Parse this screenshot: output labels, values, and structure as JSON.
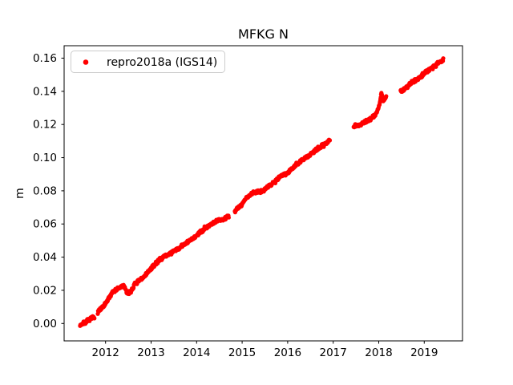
{
  "figure": {
    "background_color": "#ffffff",
    "frame_color": "#000000"
  },
  "chart_data": {
    "type": "scatter",
    "title": "MFKG N",
    "xlabel": "",
    "ylabel": "m",
    "grid": false,
    "axis": {
      "xlim": [
        2011.09,
        2019.84
      ],
      "ylim": [
        -0.0105,
        0.1675
      ],
      "xticks": [
        2012,
        2013,
        2014,
        2015,
        2016,
        2017,
        2018,
        2019
      ],
      "yticks": [
        0.0,
        0.02,
        0.04,
        0.06,
        0.08,
        0.1,
        0.12,
        0.14,
        0.16
      ],
      "ytick_decimals": 2
    },
    "legend": {
      "position": "upper left",
      "entries": [
        {
          "label": "repro2018a (IGS14)",
          "marker": "dot",
          "color": "#ff0000"
        }
      ]
    },
    "series": [
      {
        "name": "repro2018a (IGS14)",
        "color": "#ff0000",
        "marker": "dot",
        "marker_radius_px": 2.6,
        "sample_interval_years": 0.007,
        "noise_amplitude_m": 0.0015,
        "noise_seed": 7,
        "segments": [
          [
            [
              2011.44,
              -0.001
            ],
            [
              2011.5,
              0.0
            ],
            [
              2011.58,
              0.001
            ],
            [
              2011.68,
              0.003
            ],
            [
              2011.76,
              0.004
            ]
          ],
          [
            [
              2011.83,
              0.007
            ],
            [
              2011.95,
              0.01
            ],
            [
              2012.05,
              0.014
            ],
            [
              2012.15,
              0.019
            ],
            [
              2012.28,
              0.021
            ],
            [
              2012.4,
              0.023
            ],
            [
              2012.47,
              0.018
            ],
            [
              2012.55,
              0.019
            ],
            [
              2012.65,
              0.024
            ],
            [
              2012.8,
              0.027
            ],
            [
              2013.0,
              0.033
            ],
            [
              2013.2,
              0.039
            ],
            [
              2013.4,
              0.042
            ],
            [
              2013.6,
              0.045
            ],
            [
              2013.8,
              0.049
            ],
            [
              2014.0,
              0.053
            ],
            [
              2014.2,
              0.058
            ],
            [
              2014.45,
              0.062
            ],
            [
              2014.6,
              0.063
            ],
            [
              2014.71,
              0.065
            ]
          ],
          [
            [
              2014.84,
              0.068
            ],
            [
              2015.0,
              0.072
            ],
            [
              2015.1,
              0.076
            ],
            [
              2015.25,
              0.079
            ],
            [
              2015.45,
              0.08
            ],
            [
              2015.65,
              0.084
            ],
            [
              2015.85,
              0.089
            ],
            [
              2016.0,
              0.091
            ],
            [
              2016.2,
              0.096
            ],
            [
              2016.4,
              0.1
            ],
            [
              2016.6,
              0.104
            ],
            [
              2016.8,
              0.108
            ],
            [
              2016.93,
              0.111
            ]
          ],
          [
            [
              2017.45,
              0.119
            ],
            [
              2017.6,
              0.12
            ],
            [
              2017.72,
              0.122
            ],
            [
              2017.85,
              0.124
            ],
            [
              2017.95,
              0.127
            ],
            [
              2018.02,
              0.132
            ],
            [
              2018.06,
              0.14
            ],
            [
              2018.1,
              0.134
            ],
            [
              2018.17,
              0.137
            ]
          ],
          [
            [
              2018.48,
              0.14
            ],
            [
              2018.6,
              0.142
            ],
            [
              2018.75,
              0.146
            ],
            [
              2018.9,
              0.148
            ],
            [
              2019.0,
              0.151
            ],
            [
              2019.15,
              0.154
            ],
            [
              2019.3,
              0.157
            ],
            [
              2019.42,
              0.159
            ]
          ]
        ]
      }
    ]
  }
}
